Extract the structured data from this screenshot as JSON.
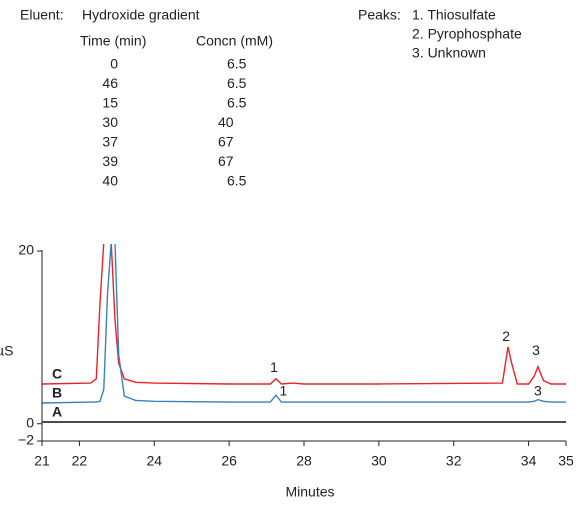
{
  "eluent": {
    "label": "Eluent:",
    "name": "Hydroxide gradient",
    "headers": [
      "Time (min)",
      "Concn (mM)"
    ],
    "rows": [
      [
        0,
        6.5
      ],
      [
        46,
        6.5
      ],
      [
        15,
        6.5
      ],
      [
        30,
        40
      ],
      [
        37,
        67
      ],
      [
        39,
        67
      ],
      [
        40,
        6.5
      ]
    ]
  },
  "peaks": {
    "label": "Peaks:",
    "items": [
      "1. Thiosulfate",
      "2. Pyrophosphate",
      "3. Unknown"
    ]
  },
  "chart_data": {
    "type": "line",
    "y_label": "µS",
    "x_label": "Minutes",
    "x": [
      21,
      22.3,
      22.45,
      22.55,
      22.65,
      22.75,
      22.85,
      22.95,
      23.05,
      23.2,
      23.5,
      24,
      26,
      27.1,
      27.25,
      27.4,
      27.7,
      28,
      30,
      33.3,
      33.45,
      33.55,
      33.7,
      34,
      34.15,
      34.25,
      34.4,
      34.6,
      35
    ],
    "series": [
      {
        "name": "C",
        "color": "#e8232b",
        "values": [
          4.6,
          4.7,
          5.2,
          14,
          21,
          21,
          21,
          12,
          7,
          5.2,
          4.8,
          4.7,
          4.6,
          4.6,
          5.2,
          4.6,
          4.7,
          4.6,
          4.6,
          4.7,
          8.9,
          7,
          4.6,
          4.6,
          5.5,
          6.6,
          5,
          4.6,
          4.6
        ]
      },
      {
        "name": "B",
        "color": "#3b82b8",
        "values": [
          2.4,
          2.5,
          2.5,
          2.6,
          4,
          15,
          21,
          21,
          8,
          3.2,
          2.7,
          2.6,
          2.5,
          2.5,
          3.3,
          2.5,
          2.5,
          2.5,
          2.5,
          2.5,
          2.5,
          2.5,
          2.5,
          2.5,
          2.6,
          2.8,
          2.6,
          2.5,
          2.5
        ]
      },
      {
        "name": "A",
        "color": "#111111",
        "values": [
          0.2,
          0.2,
          0.2,
          0.2,
          0.2,
          0.2,
          0.2,
          0.2,
          0.2,
          0.2,
          0.2,
          0.2,
          0.2,
          0.2,
          0.2,
          0.2,
          0.2,
          0.2,
          0.2,
          0.2,
          0.2,
          0.2,
          0.2,
          0.2,
          0.2,
          0.2,
          0.2,
          0.2,
          0.2
        ]
      }
    ],
    "xlim": [
      21,
      35
    ],
    "ylim": [
      -2,
      20.7
    ],
    "xticks": [
      21,
      22,
      24,
      26,
      28,
      30,
      32,
      34,
      35
    ],
    "yticks": [
      {
        "value": -2,
        "label": "−2"
      },
      0,
      20
    ],
    "annotations": [
      {
        "text": "1",
        "x": 27.2,
        "y": 6.4
      },
      {
        "text": "1",
        "x": 27.45,
        "y": 3.7
      },
      {
        "text": "2",
        "x": 33.4,
        "y": 10
      },
      {
        "text": "3",
        "x": 34.2,
        "y": 8.4
      },
      {
        "text": "3",
        "x": 34.25,
        "y": 3.7
      }
    ]
  }
}
